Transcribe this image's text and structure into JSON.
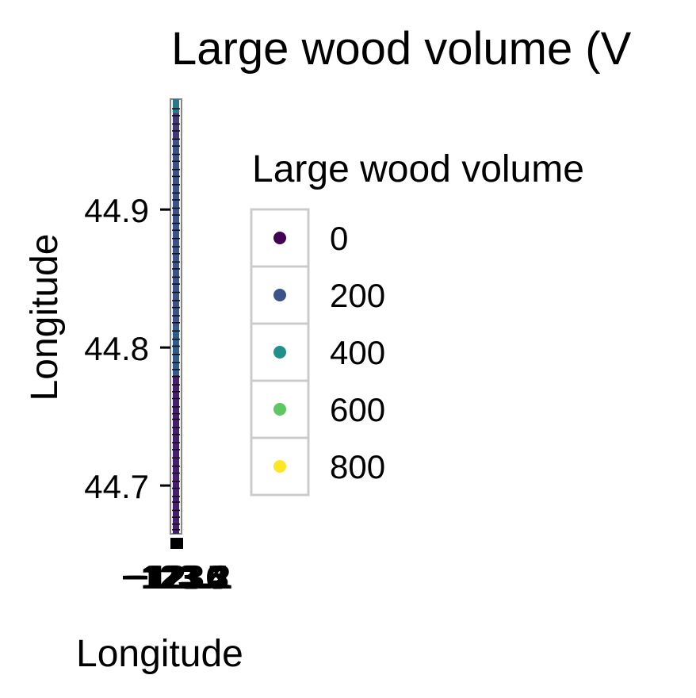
{
  "chart_data": {
    "type": "scatter",
    "title": "Large wood volume (V",
    "xlabel": "Longitude",
    "ylabel": "Longitude",
    "ylim": [
      44.665,
      44.98
    ],
    "y_ticks": [
      44.7,
      44.8,
      44.9
    ],
    "y_tick_labels": [
      "44.7",
      "44.8",
      "44.9"
    ],
    "x_tick_labels": [
      "−123.6",
      "−123.5",
      "−123.4",
      "−123.3",
      "−123.2",
      "−123.1"
    ],
    "grid": false,
    "legend": {
      "title": "Large wood volume",
      "position": "right",
      "entries": [
        {
          "label": "0",
          "color": "#440154"
        },
        {
          "label": "200",
          "color": "#3b528b"
        },
        {
          "label": "400",
          "color": "#21908c"
        },
        {
          "label": "600",
          "color": "#5dc863"
        },
        {
          "label": "800",
          "color": "#fde725"
        }
      ]
    },
    "bands": [
      {
        "y0": 44.665,
        "y1": 44.78,
        "color": "#481f70"
      },
      {
        "y0": 44.78,
        "y1": 44.815,
        "color": "#2f5e8d"
      },
      {
        "y0": 44.815,
        "y1": 44.95,
        "color": "#3b528b"
      },
      {
        "y0": 44.95,
        "y1": 44.97,
        "color": "#43397a"
      },
      {
        "y0": 44.97,
        "y1": 44.98,
        "color": "#2a788e"
      }
    ],
    "points_y": [
      44.668,
      44.672,
      44.677,
      44.682,
      44.688,
      44.692,
      44.698,
      44.703,
      44.709,
      44.714,
      44.72,
      44.726,
      44.731,
      44.737,
      44.742,
      44.748,
      44.752,
      44.757,
      44.763,
      44.768,
      44.773,
      44.779,
      44.784,
      44.789,
      44.795,
      44.801,
      44.806,
      44.812,
      44.818,
      44.823,
      44.829,
      44.834,
      44.84,
      44.846,
      44.851,
      44.857,
      44.862,
      44.868,
      44.873,
      44.879,
      44.885,
      44.89,
      44.896,
      44.901,
      44.907,
      44.912,
      44.918,
      44.924,
      44.929,
      44.935,
      44.94,
      44.946,
      44.951,
      44.957,
      44.962,
      44.968,
      44.973
    ]
  }
}
